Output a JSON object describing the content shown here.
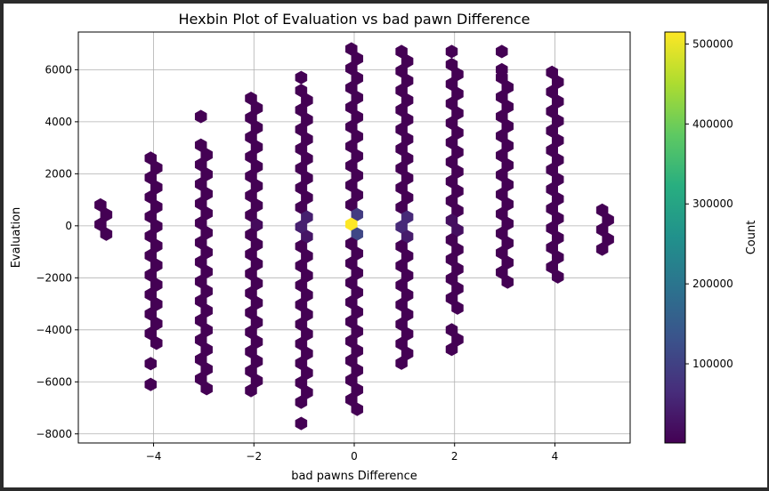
{
  "chart_data": {
    "type": "hexbin",
    "title": "Hexbin Plot of Evaluation vs bad pawn Difference",
    "xlabel": "bad pawns Difference",
    "ylabel": "Evaluation",
    "xlim": [
      -5.5,
      5.5
    ],
    "ylim": [
      -8350,
      7450
    ],
    "xticks": [
      -4,
      -2,
      0,
      2,
      4
    ],
    "xtick_labels": [
      "−4",
      "−2",
      "0",
      "2",
      "4"
    ],
    "yticks": [
      -8000,
      -6000,
      -4000,
      -2000,
      0,
      2000,
      4000,
      6000
    ],
    "ytick_labels": [
      "−8000",
      "−6000",
      "−4000",
      "−2000",
      "0",
      "2000",
      "4000",
      "6000"
    ],
    "grid": true,
    "colormap": "viridis",
    "colorbar": {
      "label": "Count",
      "range": [
        1000,
        515000
      ],
      "ticks": [
        100000,
        200000,
        300000,
        400000,
        500000
      ],
      "tick_labels": [
        "100000",
        "200000",
        "300000",
        "400000",
        "500000"
      ]
    },
    "columns": [
      {
        "x": -5,
        "y_ranges": [
          [
            -400,
            800
          ]
        ]
      },
      {
        "x": -4,
        "y_ranges": [
          [
            -4500,
            2600
          ],
          [
            -6100,
            -6100
          ],
          [
            -5300,
            -5300
          ]
        ]
      },
      {
        "x": -3,
        "y_ranges": [
          [
            -6600,
            3100
          ],
          [
            4200,
            4200
          ]
        ]
      },
      {
        "x": -2,
        "y_ranges": [
          [
            -6600,
            4900
          ]
        ]
      },
      {
        "x": -1,
        "y_ranges": [
          [
            -6800,
            5200
          ],
          [
            -7600,
            -7600
          ],
          [
            5700,
            5700
          ]
        ]
      },
      {
        "x": 0,
        "y_ranges": [
          [
            -7400,
            6800
          ]
        ]
      },
      {
        "x": 1,
        "y_ranges": [
          [
            -5300,
            6700
          ]
        ]
      },
      {
        "x": 2,
        "y_ranges": [
          [
            -3400,
            6200
          ],
          [
            -5000,
            -4000
          ],
          [
            6700,
            6700
          ]
        ]
      },
      {
        "x": 3,
        "y_ranges": [
          [
            -2400,
            5700
          ],
          [
            6000,
            6000
          ],
          [
            6700,
            6700
          ]
        ]
      },
      {
        "x": 4,
        "y_ranges": [
          [
            -2100,
            5900
          ]
        ]
      },
      {
        "x": 5,
        "y_ranges": [
          [
            -900,
            600
          ]
        ]
      }
    ],
    "hotspots": [
      {
        "x": 0,
        "y": 100,
        "count": 515000
      },
      {
        "x": 0,
        "y": -300,
        "count": 110000
      },
      {
        "x": 0,
        "y": 500,
        "count": 90000
      },
      {
        "x": 1,
        "y": 100,
        "count": 60000
      },
      {
        "x": -1,
        "y": 100,
        "count": 45000
      },
      {
        "x": 1,
        "y": -300,
        "count": 40000
      },
      {
        "x": -1,
        "y": -300,
        "count": 30000
      },
      {
        "x": 2,
        "y": 100,
        "count": 20000
      },
      {
        "x": -2,
        "y": 100,
        "count": 15000
      }
    ]
  }
}
